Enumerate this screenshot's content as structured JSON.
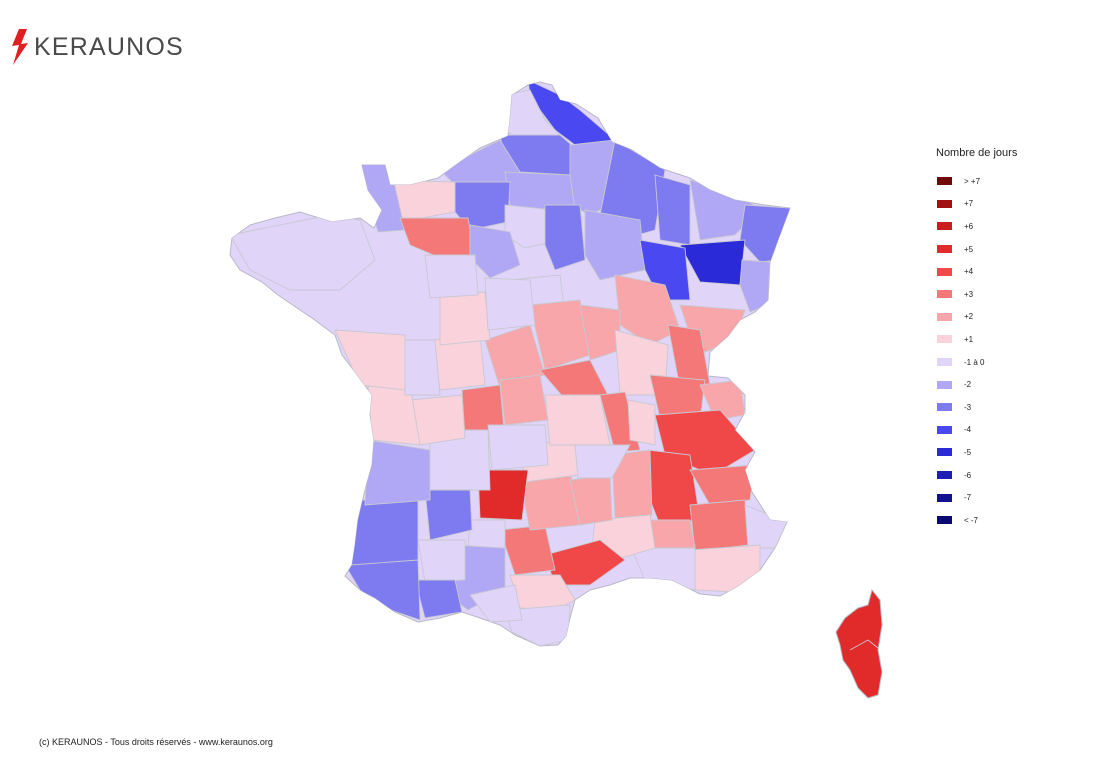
{
  "brand": {
    "name": "KERAUNOS",
    "accent": "#e02020",
    "text_color": "#4a4a4a"
  },
  "legend": {
    "title": "Nombre de jours",
    "items": [
      {
        "label": "> +7",
        "color": "#6e0a0a"
      },
      {
        "label": "+7",
        "color": "#a01212"
      },
      {
        "label": "+6",
        "color": "#c81e1e"
      },
      {
        "label": "+5",
        "color": "#e12a2a"
      },
      {
        "label": "+4",
        "color": "#f04848"
      },
      {
        "label": "+3",
        "color": "#f57878"
      },
      {
        "label": "+2",
        "color": "#f8a6aa"
      },
      {
        "label": "+1",
        "color": "#f9d2dc"
      },
      {
        "label": "-1 à 0",
        "color": "#e0d5f8"
      },
      {
        "label": "-2",
        "color": "#b0a8f4"
      },
      {
        "label": "-3",
        "color": "#7e7af0"
      },
      {
        "label": "-4",
        "color": "#4a48f0"
      },
      {
        "label": "-5",
        "color": "#2a2ad8"
      },
      {
        "label": "-6",
        "color": "#1e1eb4"
      },
      {
        "label": "-7",
        "color": "#12128e"
      },
      {
        "label": "< -7",
        "color": "#0a0a70"
      }
    ]
  },
  "footer": "(c) KERAUNOS - Tous droits réservés - www.keraunos.org"
}
